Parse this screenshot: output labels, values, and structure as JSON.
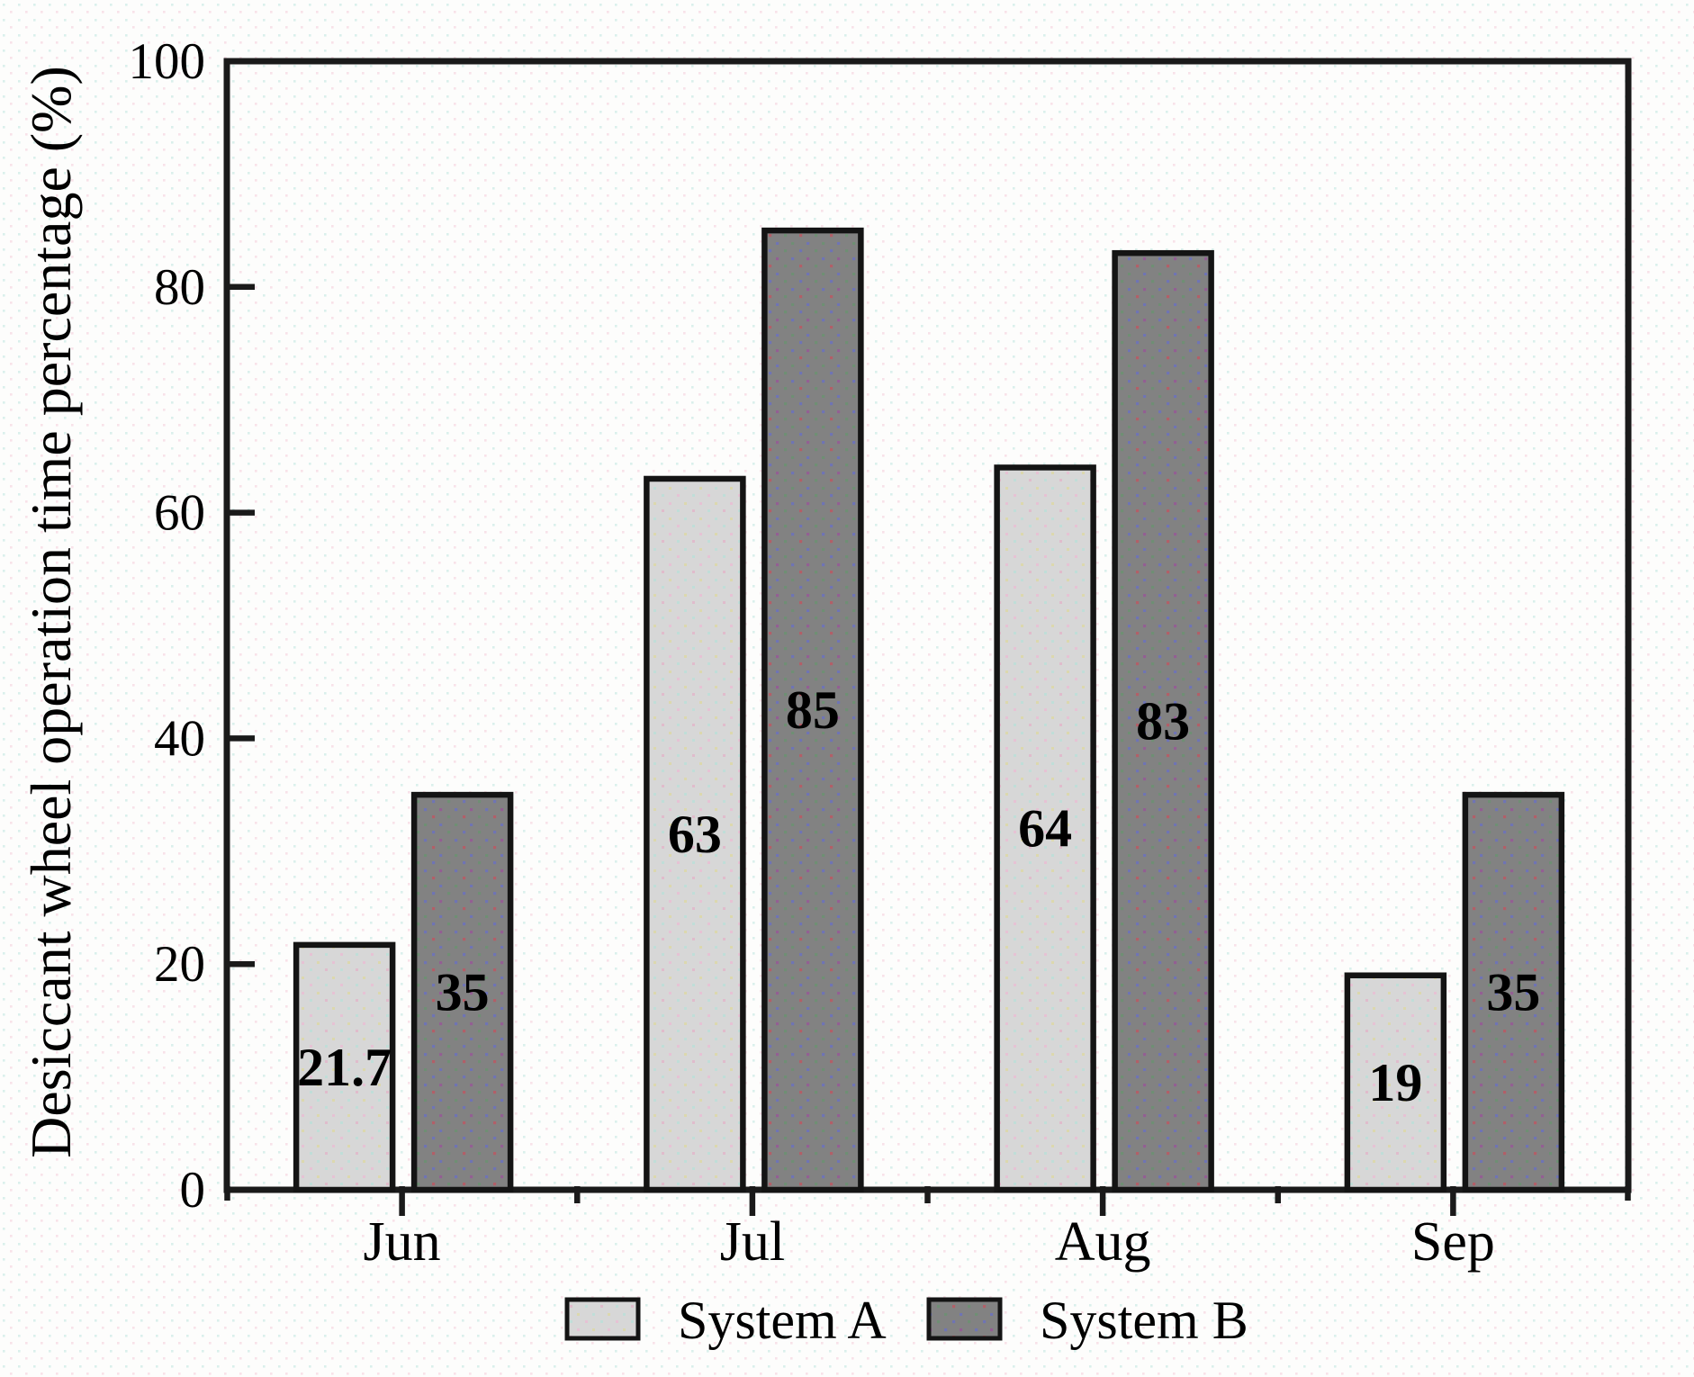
{
  "figure": {
    "kind": "bar-chart-figure",
    "background_color": "#fdfdfc",
    "axis_color": "#1a1a1a"
  },
  "chart_data": {
    "type": "bar",
    "title": "",
    "categories": [
      "Jun",
      "Jul",
      "Aug",
      "Sep"
    ],
    "series": [
      {
        "name": "System A",
        "values": [
          21.7,
          63,
          64,
          19
        ],
        "labels": [
          "21.7",
          "63",
          "64",
          "19"
        ],
        "color": "#d7d7d7"
      },
      {
        "name": "System B",
        "values": [
          35,
          85,
          83,
          35
        ],
        "labels": [
          "35",
          "85",
          "83",
          "35"
        ],
        "color": "#828282"
      }
    ],
    "xlabel": "",
    "ylabel": "Desiccant wheel operation time percentage (%)",
    "ylim": [
      0,
      100
    ],
    "yticks": [
      0,
      20,
      40,
      60,
      80,
      100
    ],
    "bar_value_labels_inside": true,
    "legend_position": "bottom-center",
    "grid": false
  }
}
